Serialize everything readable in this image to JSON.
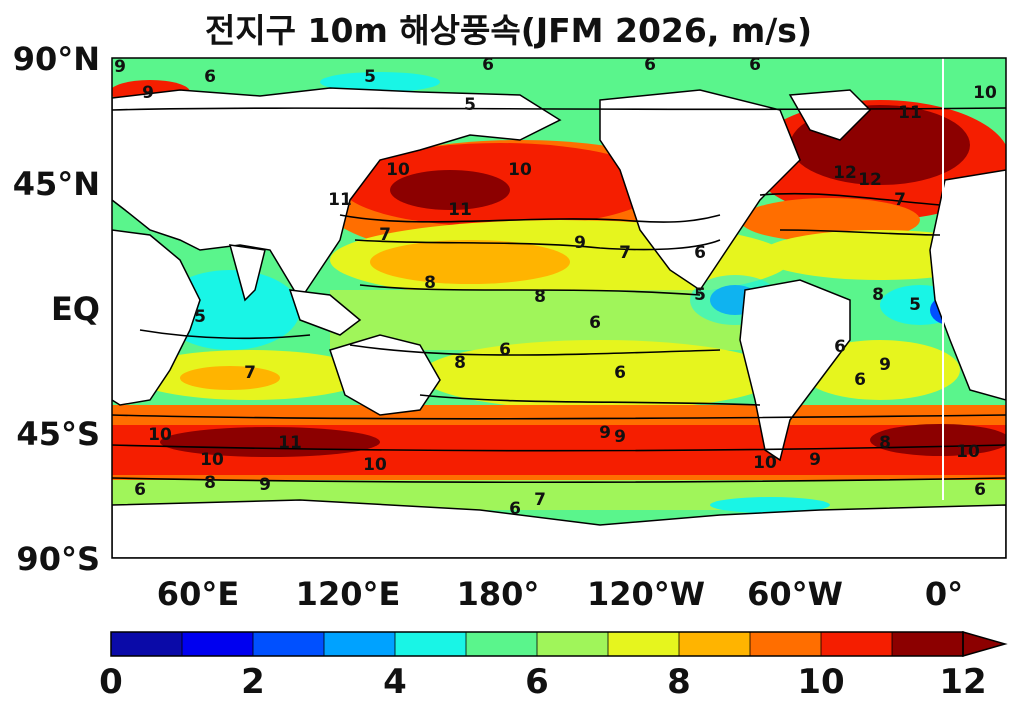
{
  "title": "전지구 10m 해상풍속(JFM 2026, m/s)",
  "y_ticks": [
    "90°N",
    "45°N",
    "EQ",
    "45°S",
    "90°S"
  ],
  "x_ticks": [
    "60°E",
    "120°E",
    "180°",
    "120°W",
    "60°W",
    "0°"
  ],
  "colorbar": {
    "tick_labels": [
      "0",
      "2",
      "4",
      "6",
      "8",
      "10",
      "12"
    ],
    "colors": [
      "#0a0aa8",
      "#0000f0",
      "#0050ff",
      "#00a2ff",
      "#19f5e6",
      "#5af58c",
      "#a0f55a",
      "#e6f51e",
      "#ffb400",
      "#ff6e00",
      "#f51e00",
      "#8c0000"
    ],
    "extend": "max"
  },
  "map": {
    "projection": "equirectangular",
    "lon_range": [
      25,
      385
    ],
    "lat_range": [
      -90,
      90
    ],
    "ocean_fill": "filled contours of wind speed",
    "land_fill": "#ffffff",
    "contour_labels": [
      {
        "t": "6"
      },
      {
        "t": "5"
      },
      {
        "t": "6"
      },
      {
        "t": "9"
      },
      {
        "t": "6"
      },
      {
        "t": "6"
      },
      {
        "t": "5"
      },
      {
        "t": "9"
      },
      {
        "t": "10"
      },
      {
        "t": "11"
      },
      {
        "t": "12"
      },
      {
        "t": "10"
      },
      {
        "t": "11"
      },
      {
        "t": "10"
      },
      {
        "t": "9"
      },
      {
        "t": "8"
      },
      {
        "t": "7"
      },
      {
        "t": "7"
      },
      {
        "t": "8"
      },
      {
        "t": "6"
      },
      {
        "t": "6"
      },
      {
        "t": "6"
      },
      {
        "t": "6"
      },
      {
        "t": "5"
      },
      {
        "t": "5"
      },
      {
        "t": "8"
      },
      {
        "t": "7"
      },
      {
        "t": "6"
      },
      {
        "t": "6"
      },
      {
        "t": "8"
      },
      {
        "t": "9"
      },
      {
        "t": "9"
      },
      {
        "t": "10"
      },
      {
        "t": "11"
      },
      {
        "t": "10"
      },
      {
        "t": "10"
      },
      {
        "t": "9"
      },
      {
        "t": "10"
      },
      {
        "t": "7"
      },
      {
        "t": "6"
      },
      {
        "t": "6"
      },
      {
        "t": "7"
      },
      {
        "t": "8"
      },
      {
        "t": "9"
      },
      {
        "t": "12"
      },
      {
        "t": "5"
      },
      {
        "t": "6"
      },
      {
        "t": "8"
      },
      {
        "t": "10"
      },
      {
        "t": "9"
      },
      {
        "t": "11"
      }
    ]
  }
}
